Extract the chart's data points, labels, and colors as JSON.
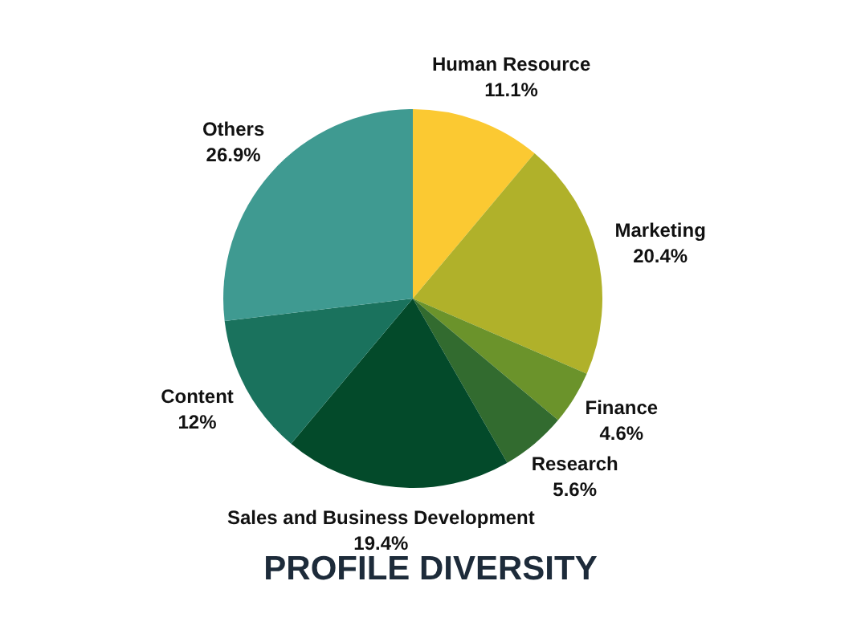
{
  "chart_data": {
    "type": "pie",
    "title": "PROFILE DIVERSITY",
    "categories": [
      "Human Resource",
      "Marketing",
      "Finance",
      "Research",
      "Sales and Business Development",
      "Content",
      "Others"
    ],
    "values": [
      11.1,
      20.4,
      4.6,
      5.6,
      19.4,
      12,
      26.9
    ],
    "value_labels": [
      "11.1%",
      "20.4%",
      "4.6%",
      "5.6%",
      "19.4%",
      "12%",
      "26.9%"
    ],
    "colors": [
      "#fbc932",
      "#b0b12a",
      "#6b932b",
      "#326b2f",
      "#034a2a",
      "#1a725d",
      "#3f9a91"
    ]
  }
}
